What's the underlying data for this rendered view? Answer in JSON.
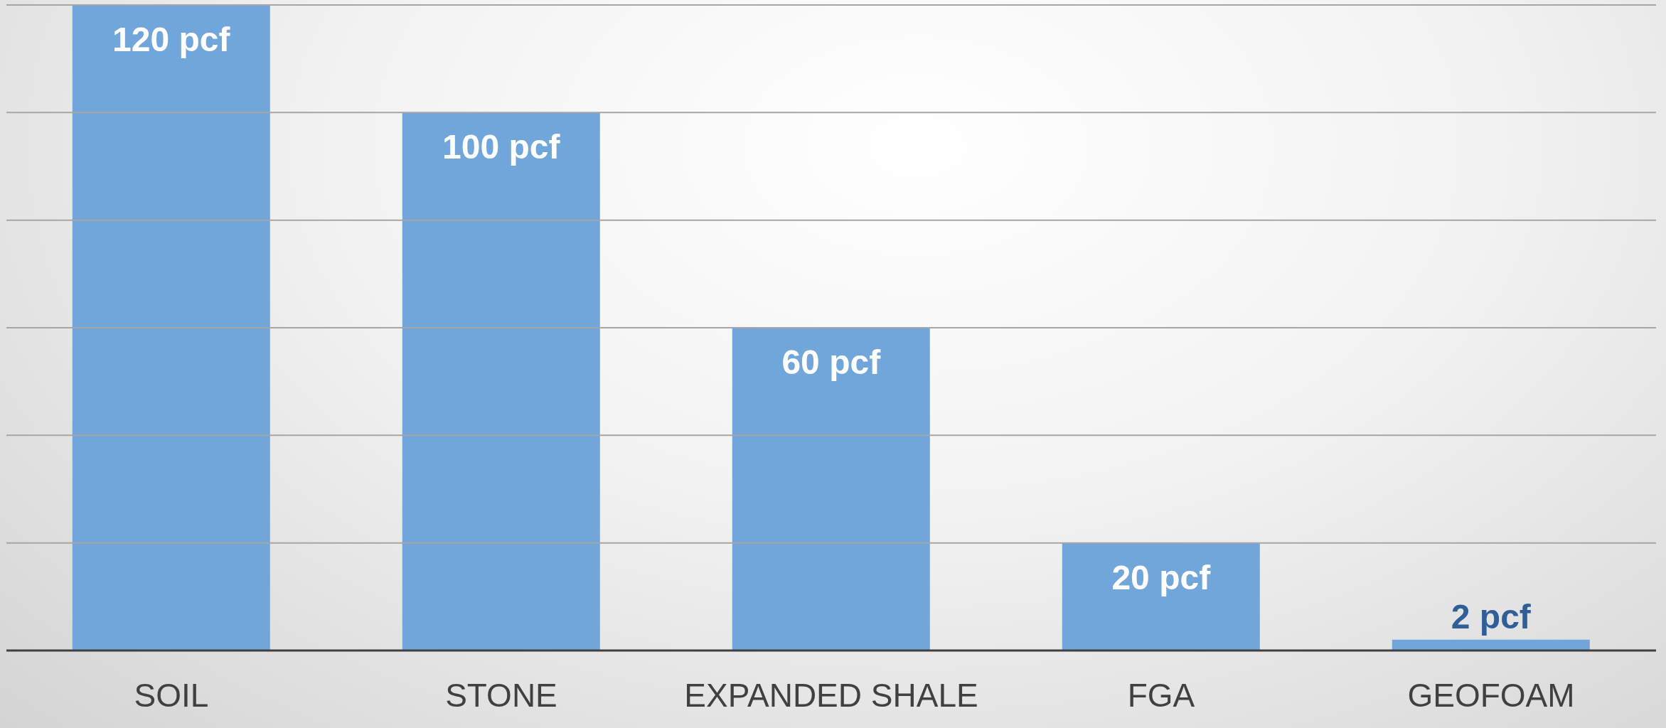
{
  "chart_data": {
    "type": "bar",
    "categories": [
      "SOIL",
      "STONE",
      "EXPANDED SHALE",
      "FGA",
      "GEOFOAM"
    ],
    "values": [
      120,
      100,
      60,
      20,
      2
    ],
    "color": "#70a6da",
    "value_labels": [
      "120 pcf",
      "100 pcf",
      "60 pcf",
      "20 pcf",
      "2 pcf"
    ],
    "ylim": [
      0,
      120
    ],
    "yticks": [
      {
        "value": 0,
        "label": null
      },
      {
        "value": 20,
        "label": null
      },
      {
        "value": 40,
        "label": null
      },
      {
        "value": 60,
        "label": null
      },
      {
        "value": 80,
        "label": null
      },
      {
        "value": 100,
        "label": null
      },
      {
        "value": 120,
        "label": null
      }
    ],
    "tick_labels": "x",
    "grid": "y",
    "legend": false
  }
}
